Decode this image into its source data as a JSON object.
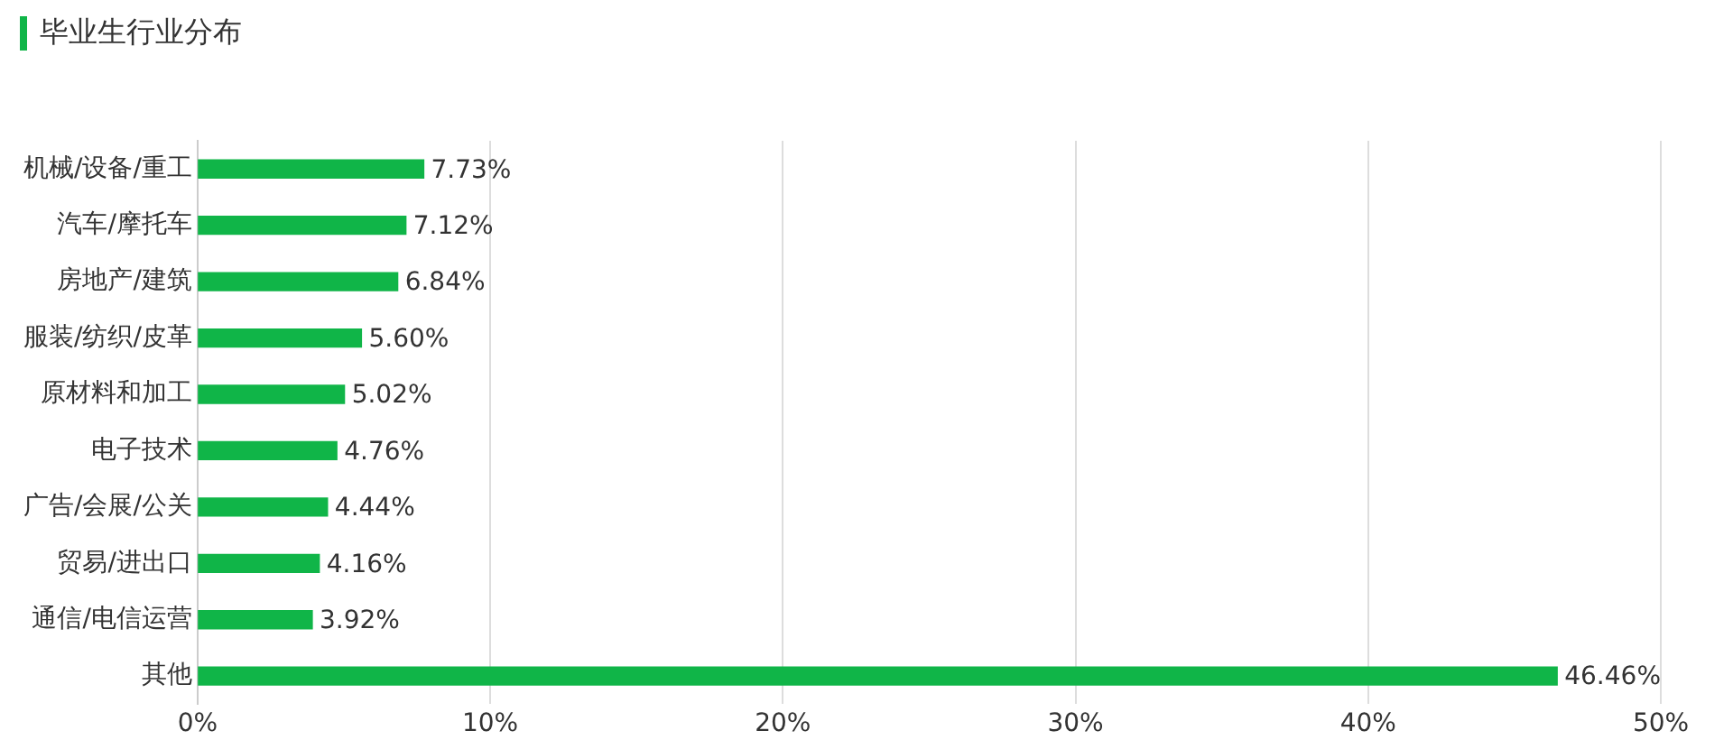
{
  "chart_data": {
    "type": "bar",
    "orientation": "horizontal",
    "title": "毕业生行业分布",
    "categories": [
      "机械/设备/重工",
      "汽车/摩托车",
      "房地产/建筑",
      "服装/纺织/皮革",
      "原材料和加工",
      "电子技术",
      "广告/会展/公关",
      "贸易/进出口",
      "通信/电信运营",
      "其他"
    ],
    "values": [
      7.73,
      7.12,
      6.84,
      5.6,
      5.02,
      4.76,
      4.44,
      4.16,
      3.92,
      46.46
    ],
    "value_labels": [
      "7.73%",
      "7.12%",
      "6.84%",
      "5.60%",
      "5.02%",
      "4.76%",
      "4.44%",
      "4.16%",
      "3.92%",
      "46.46%"
    ],
    "color": "#10b548",
    "xlim": [
      0,
      50
    ],
    "xticks": [
      {
        "value": 0,
        "label": "0%"
      },
      {
        "value": 10,
        "label": "10%"
      },
      {
        "value": 20,
        "label": "20%"
      },
      {
        "value": 30,
        "label": "30%"
      },
      {
        "value": 40,
        "label": "40%"
      },
      {
        "value": 50,
        "label": "50%"
      }
    ],
    "grid": "x",
    "legend": false
  }
}
